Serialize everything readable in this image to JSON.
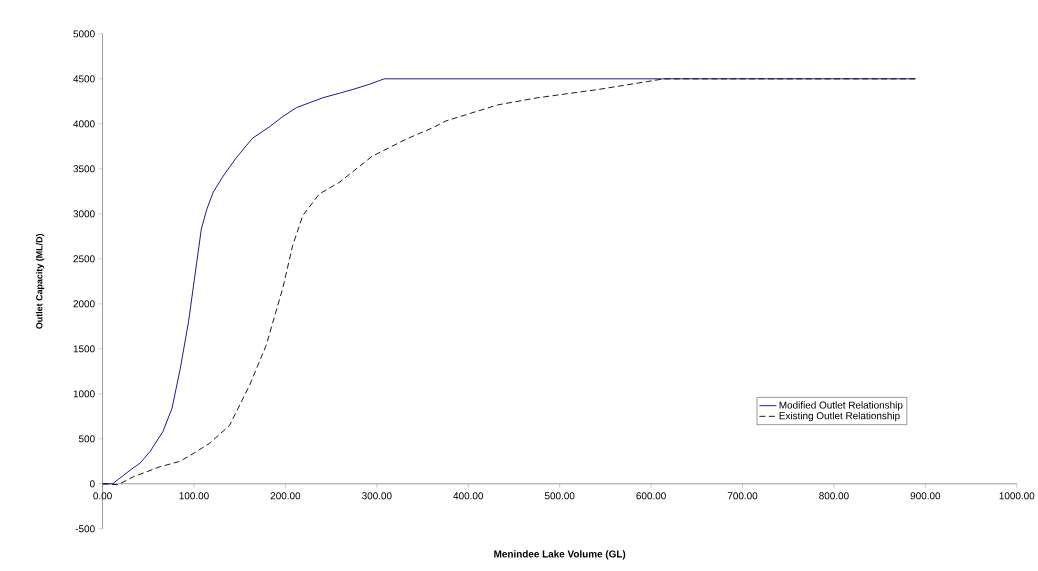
{
  "chart_data": {
    "type": "line",
    "xlabel": "Menindee Lake Volume (GL)",
    "ylabel": "Outlet Capacity (ML/D)",
    "xlim": [
      0,
      1000
    ],
    "ylim": [
      -500,
      5000
    ],
    "xticks": [
      {
        "value": 0,
        "label": "0.00"
      },
      {
        "value": 100,
        "label": "100.00"
      },
      {
        "value": 200,
        "label": "200.00"
      },
      {
        "value": 300,
        "label": "300.00"
      },
      {
        "value": 400,
        "label": "400.00"
      },
      {
        "value": 500,
        "label": "500.00"
      },
      {
        "value": 600,
        "label": "600.00"
      },
      {
        "value": 700,
        "label": "700.00"
      },
      {
        "value": 800,
        "label": "800.00"
      },
      {
        "value": 900,
        "label": "900.00"
      },
      {
        "value": 1000,
        "label": "1000.00"
      }
    ],
    "yticks": [
      -500,
      0,
      500,
      1000,
      1500,
      2000,
      2500,
      3000,
      3500,
      4000,
      4500,
      5000
    ],
    "legend": "bottom right",
    "grid": false,
    "marker": "none",
    "series": [
      {
        "name": "Modified Outlet Relationship",
        "color": "#000080",
        "line_style": "solid",
        "x": [
          0,
          11,
          30,
          41,
          52,
          66,
          76,
          85,
          94,
          103,
          108,
          114,
          121,
          132,
          146,
          164,
          183,
          197,
          212,
          241,
          259,
          273,
          292,
          308,
          350,
          500,
          700,
          889
        ],
        "values": [
          0,
          0,
          150,
          230,
          360,
          580,
          840,
          1280,
          1800,
          2460,
          2830,
          3050,
          3240,
          3420,
          3620,
          3840,
          3970,
          4080,
          4180,
          4290,
          4340,
          4380,
          4440,
          4500,
          4500,
          4500,
          4500,
          4500
        ]
      },
      {
        "name": "Existing Outlet Relationship",
        "color": "#000000",
        "line_style": "dashed",
        "x": [
          0,
          17,
          34,
          63,
          85,
          103,
          117,
          139,
          161,
          179,
          197,
          208,
          219,
          237,
          259,
          295,
          332,
          362,
          375,
          432,
          476,
          541,
          596,
          614,
          700,
          889
        ],
        "values": [
          0,
          -10,
          80,
          190,
          250,
          360,
          450,
          650,
          1100,
          1540,
          2170,
          2650,
          2980,
          3220,
          3350,
          3640,
          3830,
          3960,
          4030,
          4210,
          4290,
          4380,
          4470,
          4500,
          4500,
          4500
        ]
      }
    ]
  }
}
